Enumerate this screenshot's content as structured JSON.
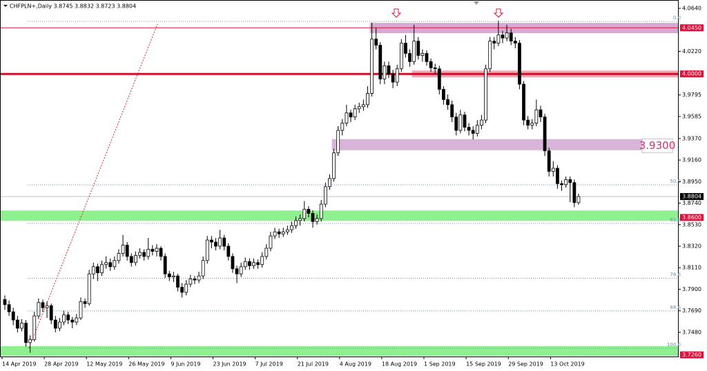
{
  "chart_data": {
    "type": "candlestick",
    "title": "CHFPLN+,Daily  3.8745 3.8832 3.8723 3.8804",
    "ylim": [
      3.7244,
      4.0721
    ],
    "xlim": [
      -1,
      160
    ],
    "yticks": [
      {
        "value": 4.064,
        "label": "4.0640"
      },
      {
        "value": 4.022,
        "label": "4.0220"
      },
      {
        "value": 3.9795,
        "label": "3.9795"
      },
      {
        "value": 3.9585,
        "label": "3.9585"
      },
      {
        "value": 3.937,
        "label": "3.9370"
      },
      {
        "value": 3.916,
        "label": "3.9160"
      },
      {
        "value": 3.895,
        "label": "3.8950"
      },
      {
        "value": 3.874,
        "label": "3.8740"
      },
      {
        "value": 3.853,
        "label": "3.8530"
      },
      {
        "value": 3.832,
        "label": "3.8320"
      },
      {
        "value": 3.811,
        "label": "3.8110"
      },
      {
        "value": 3.79,
        "label": "3.7900"
      },
      {
        "value": 3.769,
        "label": "3.7690"
      },
      {
        "value": 3.748,
        "label": "3.7480"
      }
    ],
    "xticks": [
      {
        "value": 0,
        "label": "14 Apr 2019"
      },
      {
        "value": 10,
        "label": "28 Apr 2019"
      },
      {
        "value": 20,
        "label": "12 May 2019"
      },
      {
        "value": 30,
        "label": "26 May 2019"
      },
      {
        "value": 40,
        "label": "9 Jun 2019"
      },
      {
        "value": 50,
        "label": "23 Jun 2019"
      },
      {
        "value": 60,
        "label": "7 Jul 2019"
      },
      {
        "value": 70,
        "label": "21 Jul 2019"
      },
      {
        "value": 80,
        "label": "4 Aug 2019"
      },
      {
        "value": 90,
        "label": "18 Aug 2019"
      },
      {
        "value": 100,
        "label": "1 Sep 2019"
      },
      {
        "value": 110,
        "label": "15 Sep 2019"
      },
      {
        "value": 120,
        "label": "29 Sep 2019"
      },
      {
        "value": 130,
        "label": "13 Oct 2019"
      }
    ],
    "up_color": "#ffffff",
    "down_color": "#000000",
    "candles": [
      [
        3.78,
        3.784,
        3.77,
        3.775
      ],
      [
        3.775,
        3.779,
        3.764,
        3.768
      ],
      [
        3.768,
        3.772,
        3.755,
        3.76
      ],
      [
        3.76,
        3.764,
        3.748,
        3.752
      ],
      [
        3.752,
        3.761,
        3.749,
        3.757
      ],
      [
        3.757,
        3.76,
        3.734,
        3.738
      ],
      [
        3.738,
        3.745,
        3.728,
        3.741
      ],
      [
        3.741,
        3.768,
        3.739,
        3.764
      ],
      [
        3.764,
        3.781,
        3.761,
        3.777
      ],
      [
        3.777,
        3.78,
        3.768,
        3.772
      ],
      [
        3.772,
        3.778,
        3.762,
        3.774
      ],
      [
        3.774,
        3.776,
        3.756,
        3.76
      ],
      [
        3.76,
        3.764,
        3.748,
        3.752
      ],
      [
        3.752,
        3.762,
        3.749,
        3.758
      ],
      [
        3.758,
        3.769,
        3.755,
        3.765
      ],
      [
        3.765,
        3.768,
        3.756,
        3.76
      ],
      [
        3.76,
        3.763,
        3.752,
        3.758
      ],
      [
        3.758,
        3.766,
        3.755,
        3.762
      ],
      [
        3.762,
        3.782,
        3.76,
        3.778
      ],
      [
        3.778,
        3.781,
        3.772,
        3.776
      ],
      [
        3.776,
        3.809,
        3.774,
        3.805
      ],
      [
        3.805,
        3.816,
        3.8,
        3.812
      ],
      [
        3.812,
        3.815,
        3.798,
        3.806
      ],
      [
        3.806,
        3.818,
        3.803,
        3.814
      ],
      [
        3.814,
        3.822,
        3.81,
        3.816
      ],
      [
        3.816,
        3.82,
        3.808,
        3.812
      ],
      [
        3.812,
        3.822,
        3.809,
        3.818
      ],
      [
        3.818,
        3.829,
        3.815,
        3.825
      ],
      [
        3.825,
        3.843,
        3.822,
        3.833
      ],
      [
        3.833,
        3.836,
        3.818,
        3.822
      ],
      [
        3.822,
        3.825,
        3.812,
        3.816
      ],
      [
        3.816,
        3.827,
        3.813,
        3.823
      ],
      [
        3.823,
        3.83,
        3.82,
        3.826
      ],
      [
        3.826,
        3.829,
        3.818,
        3.822
      ],
      [
        3.822,
        3.84,
        3.819,
        3.829
      ],
      [
        3.829,
        3.833,
        3.823,
        3.827
      ],
      [
        3.827,
        3.834,
        3.822,
        3.83
      ],
      [
        3.83,
        3.832,
        3.818,
        3.822
      ],
      [
        3.822,
        3.825,
        3.801,
        3.805
      ],
      [
        3.805,
        3.808,
        3.798,
        3.802
      ],
      [
        3.802,
        3.807,
        3.797,
        3.803
      ],
      [
        3.803,
        3.805,
        3.788,
        3.792
      ],
      [
        3.792,
        3.796,
        3.782,
        3.787
      ],
      [
        3.787,
        3.799,
        3.784,
        3.795
      ],
      [
        3.795,
        3.804,
        3.792,
        3.8
      ],
      [
        3.8,
        3.803,
        3.795,
        3.799
      ],
      [
        3.799,
        3.807,
        3.796,
        3.803
      ],
      [
        3.803,
        3.822,
        3.8,
        3.818
      ],
      [
        3.818,
        3.842,
        3.815,
        3.838
      ],
      [
        3.838,
        3.842,
        3.83,
        3.836
      ],
      [
        3.836,
        3.84,
        3.828,
        3.832
      ],
      [
        3.832,
        3.848,
        3.829,
        3.84
      ],
      [
        3.84,
        3.843,
        3.828,
        3.832
      ],
      [
        3.832,
        3.835,
        3.818,
        3.822
      ],
      [
        3.822,
        3.825,
        3.806,
        3.81
      ],
      [
        3.81,
        3.813,
        3.796,
        3.805
      ],
      [
        3.805,
        3.816,
        3.802,
        3.812
      ],
      [
        3.812,
        3.821,
        3.809,
        3.817
      ],
      [
        3.817,
        3.82,
        3.809,
        3.813
      ],
      [
        3.813,
        3.82,
        3.81,
        3.816
      ],
      [
        3.816,
        3.819,
        3.81,
        3.814
      ],
      [
        3.814,
        3.826,
        3.811,
        3.822
      ],
      [
        3.822,
        3.834,
        3.819,
        3.83
      ],
      [
        3.83,
        3.846,
        3.827,
        3.842
      ],
      [
        3.842,
        3.85,
        3.839,
        3.846
      ],
      [
        3.846,
        3.849,
        3.84,
        3.844
      ],
      [
        3.844,
        3.85,
        3.841,
        3.846
      ],
      [
        3.846,
        3.852,
        3.843,
        3.848
      ],
      [
        3.848,
        3.856,
        3.845,
        3.852
      ],
      [
        3.852,
        3.861,
        3.849,
        3.857
      ],
      [
        3.857,
        3.863,
        3.852,
        3.859
      ],
      [
        3.859,
        3.876,
        3.856,
        3.868
      ],
      [
        3.868,
        3.871,
        3.86,
        3.864
      ],
      [
        3.864,
        3.867,
        3.85,
        3.856
      ],
      [
        3.856,
        3.863,
        3.853,
        3.859
      ],
      [
        3.859,
        3.877,
        3.856,
        3.873
      ],
      [
        3.873,
        3.894,
        3.87,
        3.89
      ],
      [
        3.89,
        3.902,
        3.887,
        3.898
      ],
      [
        3.898,
        3.927,
        3.895,
        3.923
      ],
      [
        3.923,
        3.949,
        3.92,
        3.945
      ],
      [
        3.945,
        3.956,
        3.94,
        3.952
      ],
      [
        3.952,
        3.97,
        3.949,
        3.962
      ],
      [
        3.962,
        3.965,
        3.953,
        3.958
      ],
      [
        3.958,
        3.97,
        3.955,
        3.966
      ],
      [
        3.966,
        3.972,
        3.962,
        3.968
      ],
      [
        3.968,
        3.975,
        3.964,
        3.97
      ],
      [
        3.97,
        3.988,
        3.967,
        3.981
      ],
      [
        3.981,
        4.05,
        3.978,
        4.034
      ],
      [
        4.034,
        4.045,
        4.024,
        4.028
      ],
      [
        4.028,
        4.031,
        3.99,
        3.995
      ],
      [
        3.995,
        4.012,
        3.99,
        4.008
      ],
      [
        4.008,
        4.012,
        3.996,
        4.0
      ],
      [
        4.0,
        4.004,
        3.986,
        3.992
      ],
      [
        3.992,
        4.009,
        3.988,
        4.005
      ],
      [
        4.005,
        4.034,
        4.002,
        4.03
      ],
      [
        4.03,
        4.038,
        4.016,
        4.02
      ],
      [
        4.02,
        4.024,
        4.007,
        4.012
      ],
      [
        4.012,
        4.048,
        4.009,
        4.032
      ],
      [
        4.032,
        4.036,
        4.014,
        4.018
      ],
      [
        4.018,
        4.024,
        4.012,
        4.02
      ],
      [
        4.02,
        4.023,
        4.008,
        4.012
      ],
      [
        4.012,
        4.015,
        4.002,
        4.006
      ],
      [
        4.006,
        4.01,
        4.0,
        4.005
      ],
      [
        4.005,
        4.008,
        3.98,
        3.985
      ],
      [
        3.985,
        3.988,
        3.97,
        3.975
      ],
      [
        3.975,
        3.98,
        3.965,
        3.97
      ],
      [
        3.97,
        3.974,
        3.953,
        3.958
      ],
      [
        3.958,
        3.962,
        3.94,
        3.945
      ],
      [
        3.945,
        3.965,
        3.942,
        3.96
      ],
      [
        3.96,
        3.963,
        3.944,
        3.948
      ],
      [
        3.948,
        3.952,
        3.94,
        3.945
      ],
      [
        3.945,
        3.949,
        3.936,
        3.942
      ],
      [
        3.942,
        3.955,
        3.939,
        3.95
      ],
      [
        3.95,
        3.96,
        3.946,
        3.955
      ],
      [
        3.955,
        4.009,
        3.952,
        4.005
      ],
      [
        4.005,
        4.036,
        4.002,
        4.032
      ],
      [
        4.032,
        4.036,
        4.024,
        4.03
      ],
      [
        4.03,
        4.052,
        4.027,
        4.038
      ],
      [
        4.038,
        4.042,
        4.03,
        4.035
      ],
      [
        4.035,
        4.048,
        4.032,
        4.04
      ],
      [
        4.04,
        4.044,
        4.028,
        4.032
      ],
      [
        4.032,
        4.036,
        4.025,
        4.03
      ],
      [
        4.03,
        4.033,
        3.985,
        3.99
      ],
      [
        3.99,
        3.993,
        3.95,
        3.955
      ],
      [
        3.955,
        3.959,
        3.946,
        3.95
      ],
      [
        3.95,
        3.956,
        3.946,
        3.952
      ],
      [
        3.952,
        3.975,
        3.949,
        3.965
      ],
      [
        3.965,
        3.969,
        3.953,
        3.958
      ],
      [
        3.958,
        3.961,
        3.92,
        3.925
      ],
      [
        3.925,
        3.928,
        3.9,
        3.905
      ],
      [
        3.905,
        3.915,
        3.9,
        3.908
      ],
      [
        3.908,
        3.911,
        3.888,
        3.893
      ],
      [
        3.893,
        3.896,
        3.886,
        3.892
      ],
      [
        3.892,
        3.9,
        3.889,
        3.897
      ],
      [
        3.897,
        3.9,
        3.875,
        3.894
      ],
      [
        3.894,
        3.897,
        3.87,
        3.8745
      ],
      [
        3.8745,
        3.8832,
        3.8723,
        3.8804
      ]
    ],
    "zones": [
      {
        "from": 4.0397,
        "to": 4.0498,
        "start": 87,
        "color": "#d7a9d3"
      },
      {
        "from": 3.9966,
        "to": 4.0033,
        "start": 97,
        "color": "#f3a9b5"
      },
      {
        "from": 3.9256,
        "to": 3.9364,
        "start": 78,
        "color": "#d9b4d9"
      },
      {
        "from": 3.8567,
        "to": 3.8668,
        "start": -1,
        "color": "#8ef08e"
      },
      {
        "from": 3.725,
        "to": 3.7345,
        "start": -1,
        "color": "#8ef08e"
      }
    ],
    "lines": [
      {
        "value": 4.045,
        "color": "#e0103a",
        "width": 1
      },
      {
        "value": 4.0,
        "color": "#d0102a",
        "width": 3
      },
      {
        "value": 3.8804,
        "color": "#c0c0c0",
        "width": 1
      }
    ],
    "fibo": [
      {
        "value": 4.0512,
        "label": "0.0"
      },
      {
        "value": 3.8918,
        "label": "50.0"
      },
      {
        "value": 3.8542,
        "label": "61.8"
      },
      {
        "value": 3.8007,
        "label": "78.6"
      },
      {
        "value": 3.7689,
        "label": "88.6"
      },
      {
        "value": 3.7325,
        "label": "100.0"
      }
    ],
    "price_labels": [
      {
        "value": 4.045,
        "label": "4.0450",
        "color": "#e0103a"
      },
      {
        "value": 4.0,
        "label": "4.0000",
        "color": "#e0103a"
      },
      {
        "value": 3.8804,
        "label": "3.8804",
        "color": "#000000"
      },
      {
        "value": 3.86,
        "label": "3.8600",
        "color": "#e0103a"
      },
      {
        "value": 3.726,
        "label": "3.7260",
        "color": "#e0103a"
      }
    ],
    "annotation": {
      "value": 3.93,
      "label": "3.9300",
      "color": "#d0306a"
    }
  }
}
